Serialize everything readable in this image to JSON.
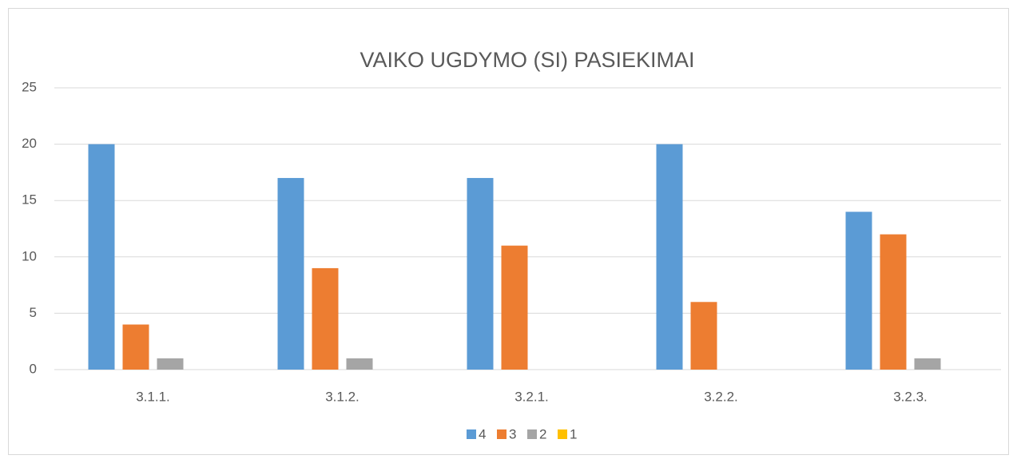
{
  "chart_data": {
    "type": "bar",
    "title": "VAIKO UGDYMO (SI) PASIEKIMAI",
    "categories": [
      "3.1.1.",
      "3.1.2.",
      "3.2.1.",
      "3.2.2.",
      "3.2.3."
    ],
    "series": [
      {
        "name": "4",
        "color": "#5b9bd5",
        "values": [
          20,
          17,
          17,
          20,
          14
        ]
      },
      {
        "name": "3",
        "color": "#ed7d31",
        "values": [
          4,
          9,
          11,
          6,
          12
        ]
      },
      {
        "name": "2",
        "color": "#a5a5a5",
        "values": [
          1,
          1,
          0,
          0,
          1
        ]
      },
      {
        "name": "1",
        "color": "#ffc000",
        "values": [
          0,
          0,
          0,
          0,
          0
        ]
      }
    ],
    "ylim": [
      0,
      25
    ],
    "yticks": [
      0,
      5,
      10,
      15,
      20,
      25
    ],
    "grid": true,
    "legend": "bottom"
  }
}
